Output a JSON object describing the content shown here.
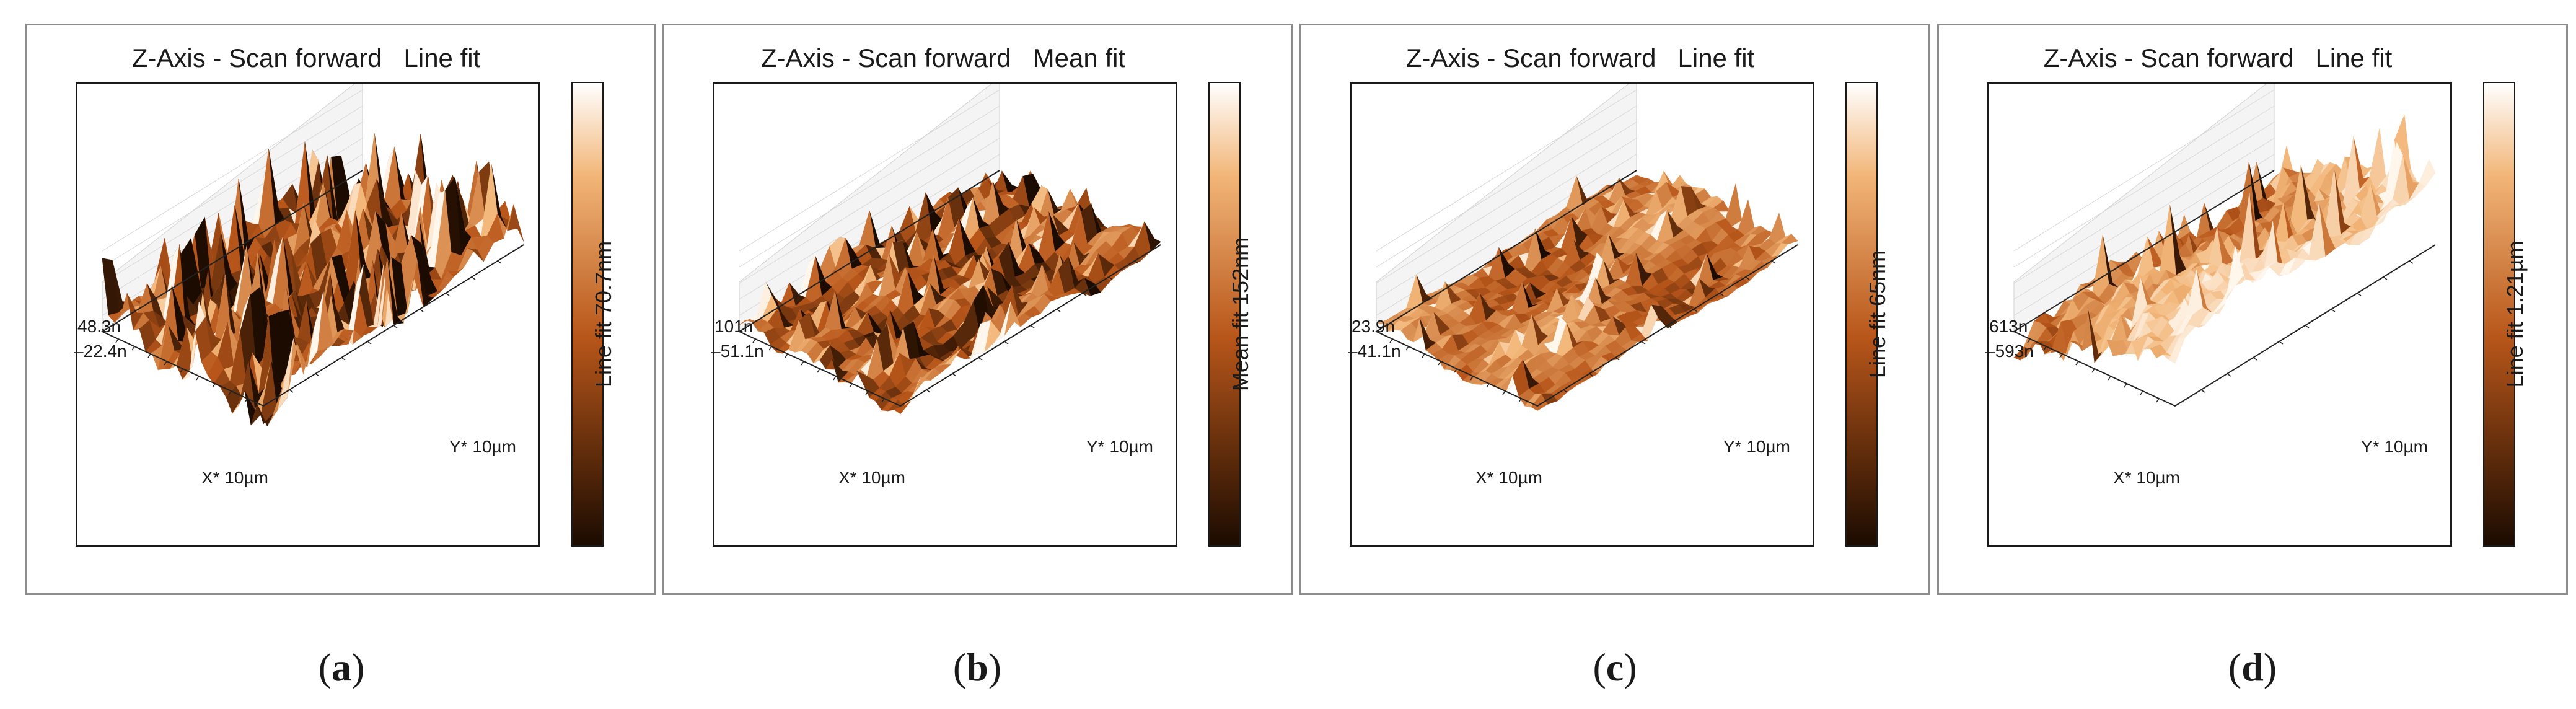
{
  "colors": {
    "dark": "#1b0b00",
    "mid": "#b8561a",
    "light": "#f2b678",
    "top": "#ffffff",
    "frame": "#8c8c8c"
  },
  "panels": [
    {
      "title": "Z-Axis - Scan forward   Line fit",
      "z_max": "48.3n",
      "z_min": "–22.4n",
      "x_axis": "X* 10µm",
      "y_axis": "Y* 10µm",
      "colorbar_label": "Line fit 70.7nm",
      "caption": "a"
    },
    {
      "title": "Z-Axis - Scan forward   Mean fit",
      "z_max": "101n",
      "z_min": "–51.1n",
      "x_axis": "X* 10µm",
      "y_axis": "Y* 10µm",
      "colorbar_label": "Mean fit 152nm",
      "caption": "b"
    },
    {
      "title": "Z-Axis - Scan forward   Line fit",
      "z_max": "23.9n",
      "z_min": "–41.1n",
      "x_axis": "X* 10µm",
      "y_axis": "Y* 10µm",
      "colorbar_label": "Line fit 65nm",
      "caption": "c"
    },
    {
      "title": "Z-Axis - Scan forward   Line fit",
      "z_max": "613n",
      "z_min": "–593n",
      "x_axis": "X* 10µm",
      "y_axis": "Y* 10µm",
      "colorbar_label": "Line fit 1.21µm",
      "caption": "d"
    }
  ]
}
